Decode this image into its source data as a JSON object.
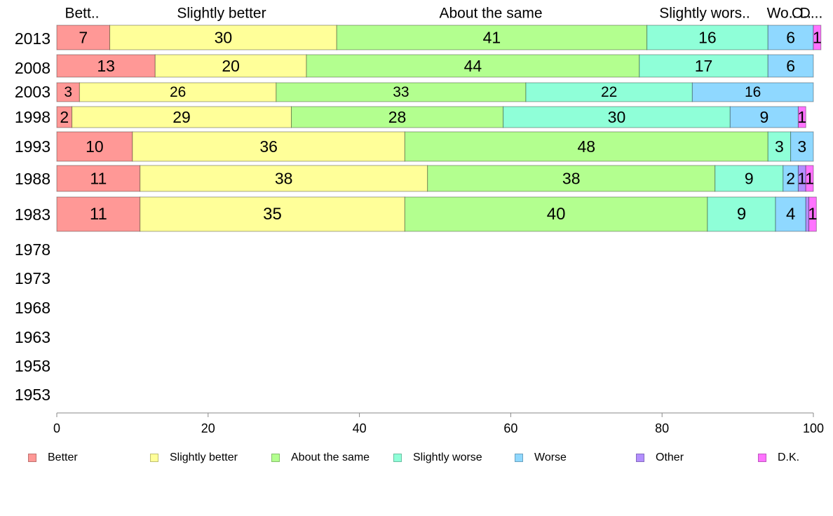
{
  "chart_data": {
    "type": "bar",
    "orientation": "horizontal",
    "stacked": true,
    "title": "",
    "xlabel": "",
    "ylabel": "",
    "xlim": [
      0,
      100
    ],
    "x_ticks": [
      0,
      20,
      40,
      60,
      80,
      100
    ],
    "categories": [
      "2013",
      "2008",
      "2003",
      "1998",
      "1993",
      "1988",
      "1983",
      "1978",
      "1973",
      "1968",
      "1963",
      "1958",
      "1953"
    ],
    "top_labels": [
      "Bett..",
      "Slightly better",
      "About the same",
      "Slightly wors..",
      "Wo..",
      "O..",
      "D..."
    ],
    "series": [
      {
        "name": "Better",
        "color": "#ff9896",
        "values": [
          7,
          13,
          3,
          2,
          10,
          11,
          11,
          null,
          null,
          null,
          null,
          null,
          null
        ]
      },
      {
        "name": "Slightly better",
        "color": "#ffff99",
        "values": [
          30,
          20,
          26,
          29,
          36,
          38,
          35,
          null,
          null,
          null,
          null,
          null,
          null
        ]
      },
      {
        "name": "About the same",
        "color": "#b3ff8f",
        "values": [
          41,
          44,
          33,
          28,
          48,
          38,
          40,
          null,
          null,
          null,
          null,
          null,
          null
        ]
      },
      {
        "name": "Slightly worse",
        "color": "#8fffd8",
        "values": [
          16,
          17,
          22,
          30,
          3,
          9,
          9,
          null,
          null,
          null,
          null,
          null,
          null
        ]
      },
      {
        "name": "Worse",
        "color": "#8fd8ff",
        "values": [
          6,
          6,
          16,
          9,
          3,
          2,
          4,
          null,
          null,
          null,
          null,
          null,
          null
        ]
      },
      {
        "name": "Other",
        "color": "#b38fff",
        "values": [
          0,
          0,
          0,
          0,
          0,
          1,
          0.4,
          null,
          null,
          null,
          null,
          null,
          null
        ]
      },
      {
        "name": "D.K.",
        "color": "#ff73ff",
        "values": [
          1,
          0,
          0,
          1,
          0,
          1,
          1,
          null,
          null,
          null,
          null,
          null,
          null
        ]
      }
    ],
    "bar_weights": [
      1,
      1,
      0.72,
      0.85,
      1.0,
      1.05,
      1.35
    ],
    "grid": false,
    "legend_position": "bottom"
  }
}
